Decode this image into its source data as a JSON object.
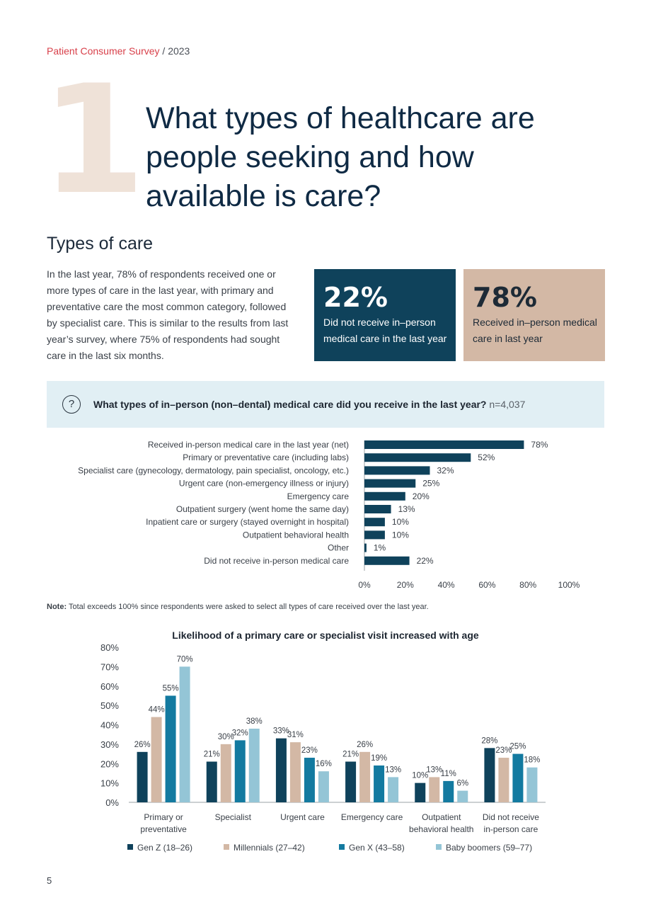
{
  "header": {
    "kicker_accent": "Patient Consumer Survey",
    "kicker_rest": " / 2023"
  },
  "section_number": "1",
  "heading": "What types of healthcare are people seeking and how available is care?",
  "section_title": "Types of care",
  "intro": "In the last year, 78% of respondents received one or more types of care in the last year, with primary and preventative care the most common category, followed by specialist care. This is similar to the results from last year’s survey, where 75% of respondents had sought care in the last six months.",
  "stats": [
    {
      "value": "22%",
      "label": "Did not receive in–person medical care in the last year"
    },
    {
      "value": "78%",
      "label": "Received in–person medical care in last year"
    }
  ],
  "question": {
    "text": "What types of in–person (non–dental) medical care did you receive in the last year?",
    "n": " n=4,037"
  },
  "note": {
    "label": "Note:",
    "text": " Total exceeds 100% since respondents were asked to select all types of care received over the last year."
  },
  "page_number": "5",
  "colors": {
    "navy": "#0f425b",
    "tan": "#d3b8a5",
    "teal": "#137aa0",
    "light_blue": "#94c5d6",
    "accent_red": "#d8404a"
  },
  "chart_data": [
    {
      "type": "bar",
      "orientation": "horizontal",
      "categories": [
        "Received in-person medical care in the last year (net)",
        "Primary or preventative care (including labs)",
        "Specialist care (gynecology, dermatology, pain specialist, oncology, etc.)",
        "Urgent care (non-emergency illness or injury)",
        "Emergency care",
        "Outpatient surgery (went home the same day)",
        "Inpatient care or surgery (stayed overnight in hospital)",
        "Outpatient behavioral health",
        "Other",
        "Did not receive in-person medical care"
      ],
      "values": [
        78,
        52,
        32,
        25,
        20,
        13,
        10,
        10,
        1,
        22
      ],
      "value_labels": [
        "78%",
        "52%",
        "32%",
        "25%",
        "20%",
        "13%",
        "10%",
        "10%",
        "1%",
        "22%"
      ],
      "xticks": [
        "0%",
        "20%",
        "40%",
        "60%",
        "80%",
        "100%"
      ],
      "xlim": [
        0,
        100
      ],
      "color": "#0f425b"
    },
    {
      "type": "bar",
      "title": "Likelihood of a primary care or specialist visit increased with age",
      "categories": [
        [
          "Primary or",
          "preventative"
        ],
        [
          "Specialist"
        ],
        [
          "Urgent care"
        ],
        [
          "Emergency care"
        ],
        [
          "Outpatient",
          "behavioral health"
        ],
        [
          "Did not receive",
          "in-person care"
        ]
      ],
      "series": [
        {
          "name": "Gen Z (18–26)",
          "color": "#0f425b",
          "values": [
            26,
            21,
            33,
            21,
            10,
            28
          ]
        },
        {
          "name": "Millennials (27–42)",
          "color": "#d3b8a5",
          "values": [
            44,
            30,
            31,
            26,
            13,
            23
          ]
        },
        {
          "name": "Gen X (43–58)",
          "color": "#137aa0",
          "values": [
            55,
            32,
            23,
            19,
            11,
            25
          ]
        },
        {
          "name": "Baby boomers (59–77)",
          "color": "#94c5d6",
          "values": [
            70,
            38,
            16,
            13,
            6,
            18
          ]
        }
      ],
      "yticks": [
        "0%",
        "10%",
        "20%",
        "30%",
        "40%",
        "50%",
        "60%",
        "70%",
        "80%"
      ],
      "ylim": [
        0,
        80
      ],
      "legend": "bottom"
    }
  ]
}
